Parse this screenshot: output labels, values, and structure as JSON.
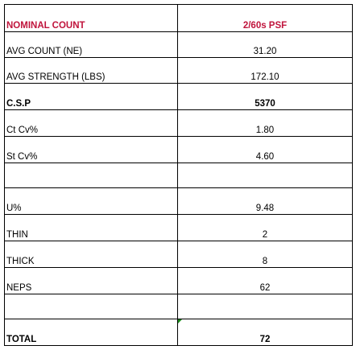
{
  "table": {
    "header": {
      "label": "NOMINAL COUNT",
      "value": "2/60s PSF"
    },
    "rows": [
      {
        "label": "AVG COUNT (NE)",
        "value": "31.20"
      },
      {
        "label": "AVG STRENGTH (LBS)",
        "value": "172.10"
      },
      {
        "label": "C.S.P",
        "value": "5370"
      },
      {
        "label": "Ct Cv%",
        "value": "1.80"
      },
      {
        "label": "St Cv%",
        "value": "4.60"
      },
      {
        "label": "",
        "value": ""
      },
      {
        "label": "U%",
        "value": "9.48"
      },
      {
        "label": "THIN",
        "value": "2"
      },
      {
        "label": "THICK",
        "value": "8"
      },
      {
        "label": "NEPS",
        "value": "62"
      },
      {
        "label": "",
        "value": ""
      },
      {
        "label": "TOTAL",
        "value": "72"
      }
    ]
  },
  "colors": {
    "header_text": "#c0143c",
    "grid_line": "#000000",
    "cell_marker": "#1a8a1a"
  }
}
